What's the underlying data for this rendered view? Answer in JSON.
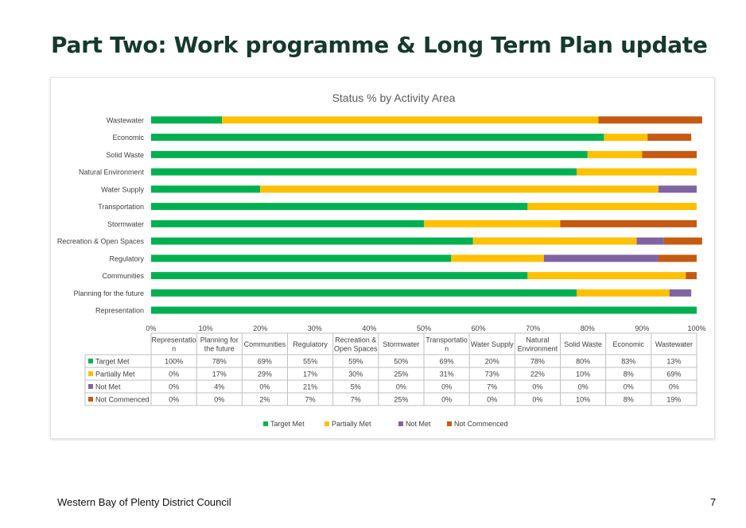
{
  "slide": {
    "title": "Part Two:   Work programme & Long Term Plan update",
    "footer_org": "Western Bay of Plenty District Council",
    "page_number": "7"
  },
  "colors": {
    "title": "#16392e",
    "Target Met": "#00b050",
    "Partially Met": "#ffc000",
    "Not Met": "#8064a2",
    "Not Commenced": "#c55a11"
  },
  "chart_data": {
    "type": "bar",
    "orientation": "horizontal",
    "stacked": "percent",
    "title": "Status %  by Activity Area",
    "categories": [
      "Representation",
      "Planning for the future",
      "Communities",
      "Regulatory",
      "Recreation & Open Spaces",
      "Stormwater",
      "Transportation",
      "Water Supply",
      "Natural Environment",
      "Solid Waste",
      "Economic",
      "Wastewater"
    ],
    "table_headers": [
      "Representatio n",
      "Planning for the future",
      "Communities",
      "Regulatory",
      "Recreation & Open Spaces",
      "Stormwater",
      "Transportatio n",
      "Water Supply",
      "Natural Environment",
      "Solid Waste",
      "Economic",
      "Wastewater"
    ],
    "series": [
      {
        "name": "Target Met",
        "values": [
          100,
          78,
          69,
          55,
          59,
          50,
          69,
          20,
          78,
          80,
          83,
          13
        ],
        "labels": [
          "100%",
          "78%",
          "69%",
          "55%",
          "59%",
          "50%",
          "69%",
          "20%",
          "78%",
          "80%",
          "83%",
          "13%"
        ]
      },
      {
        "name": "Partially Met",
        "values": [
          0,
          17,
          29,
          17,
          30,
          25,
          31,
          73,
          22,
          10,
          8,
          69
        ],
        "labels": [
          "0%",
          "17%",
          "29%",
          "17%",
          "30%",
          "25%",
          "31%",
          "73%",
          "22%",
          "10%",
          "8%",
          "69%"
        ]
      },
      {
        "name": "Not Met",
        "values": [
          0,
          4,
          0,
          21,
          5,
          0,
          0,
          7,
          0,
          0,
          0,
          0
        ],
        "labels": [
          "0%",
          "4%",
          "0%",
          "21%",
          "5%",
          "0%",
          "0%",
          "7%",
          "0%",
          "0%",
          "0%",
          "0%"
        ]
      },
      {
        "name": "Not Commenced",
        "values": [
          0,
          0,
          2,
          7,
          7,
          25,
          0,
          0,
          0,
          10,
          8,
          19
        ],
        "labels": [
          "0%",
          "0%",
          "2%",
          "7%",
          "7%",
          "25%",
          "0%",
          "0%",
          "0%",
          "10%",
          "8%",
          "19%"
        ]
      }
    ],
    "xlim": [
      0,
      100
    ],
    "xticks": [
      "0%",
      "10%",
      "20%",
      "30%",
      "40%",
      "50%",
      "60%",
      "70%",
      "80%",
      "90%",
      "100%"
    ],
    "grid": false,
    "legend": "bottom",
    "data_table": true
  }
}
